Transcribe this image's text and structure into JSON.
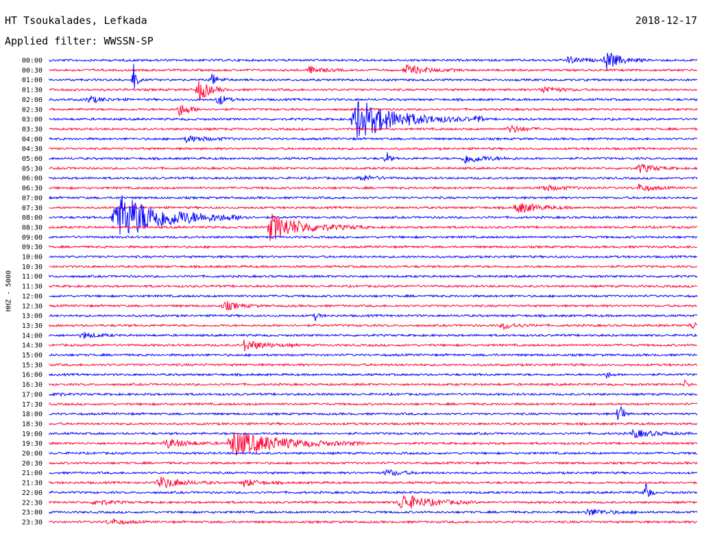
{
  "header": {
    "station": "HT Tsoukalades, Lefkada",
    "filter": "Applied filter: WWSSN-SP",
    "date": "2018-12-17"
  },
  "side_label": "HHZ - 5000",
  "colors": {
    "even": "#0000ff",
    "odd": "#ff0033"
  },
  "chart_data": {
    "type": "line",
    "title": "HT Tsoukalades, Lefkada",
    "ylabel": "HHZ - 5000",
    "row_labels": [
      "00:00",
      "00:30",
      "01:00",
      "01:30",
      "02:00",
      "02:30",
      "03:00",
      "03:30",
      "04:00",
      "04:30",
      "05:00",
      "05:30",
      "06:00",
      "06:30",
      "07:00",
      "07:30",
      "08:00",
      "08:30",
      "09:00",
      "09:30",
      "10:00",
      "10:30",
      "11:00",
      "11:30",
      "12:00",
      "12:30",
      "13:00",
      "13:30",
      "14:00",
      "14:30",
      "15:00",
      "15:30",
      "16:00",
      "16:30",
      "17:00",
      "17:30",
      "18:00",
      "18:30",
      "19:00",
      "19:30",
      "20:00",
      "20:30",
      "21:00",
      "21:30",
      "22:00",
      "22:30",
      "23:00",
      "23:30"
    ],
    "events": [
      {
        "row": 0,
        "x": 0.86,
        "amp": 14,
        "dur": 0.02
      },
      {
        "row": 0,
        "x": 0.8,
        "amp": 5,
        "dur": 0.02
      },
      {
        "row": 1,
        "x": 0.4,
        "amp": 5,
        "dur": 0.02
      },
      {
        "row": 1,
        "x": 0.55,
        "amp": 7,
        "dur": 0.03
      },
      {
        "row": 2,
        "x": 0.25,
        "amp": 9,
        "dur": 0.01
      },
      {
        "row": 2,
        "x": 0.13,
        "amp": 25,
        "dur": 0.004
      },
      {
        "row": 3,
        "x": 0.23,
        "amp": 18,
        "dur": 0.015
      },
      {
        "row": 3,
        "x": 0.76,
        "amp": 6,
        "dur": 0.02
      },
      {
        "row": 4,
        "x": 0.06,
        "amp": 5,
        "dur": 0.02
      },
      {
        "row": 4,
        "x": 0.26,
        "amp": 10,
        "dur": 0.01
      },
      {
        "row": 5,
        "x": 0.2,
        "amp": 10,
        "dur": 0.015
      },
      {
        "row": 6,
        "x": 0.47,
        "amp": 32,
        "dur": 0.06
      },
      {
        "row": 6,
        "x": 0.66,
        "amp": 12,
        "dur": 0.005
      },
      {
        "row": 7,
        "x": 0.71,
        "amp": 6,
        "dur": 0.02
      },
      {
        "row": 8,
        "x": 0.21,
        "amp": 5,
        "dur": 0.03
      },
      {
        "row": 10,
        "x": 0.52,
        "amp": 12,
        "dur": 0.004
      },
      {
        "row": 10,
        "x": 0.64,
        "amp": 7,
        "dur": 0.03
      },
      {
        "row": 11,
        "x": 0.91,
        "amp": 7,
        "dur": 0.02
      },
      {
        "row": 12,
        "x": 0.48,
        "amp": 5,
        "dur": 0.02
      },
      {
        "row": 13,
        "x": 0.76,
        "amp": 4,
        "dur": 0.03
      },
      {
        "row": 13,
        "x": 0.91,
        "amp": 5,
        "dur": 0.02
      },
      {
        "row": 16,
        "x": 0.1,
        "amp": 38,
        "dur": 0.07
      },
      {
        "row": 15,
        "x": 0.72,
        "amp": 9,
        "dur": 0.03
      },
      {
        "row": 17,
        "x": 0.34,
        "amp": 20,
        "dur": 0.05
      },
      {
        "row": 25,
        "x": 0.27,
        "amp": 7,
        "dur": 0.02
      },
      {
        "row": 26,
        "x": 0.41,
        "amp": 7,
        "dur": 0.005
      },
      {
        "row": 27,
        "x": 0.7,
        "amp": 5,
        "dur": 0.02
      },
      {
        "row": 27,
        "x": 0.99,
        "amp": 6,
        "dur": 0.01
      },
      {
        "row": 28,
        "x": 0.05,
        "amp": 5,
        "dur": 0.02
      },
      {
        "row": 29,
        "x": 0.3,
        "amp": 8,
        "dur": 0.03
      },
      {
        "row": 32,
        "x": 0.86,
        "amp": 5,
        "dur": 0.005
      },
      {
        "row": 33,
        "x": 0.98,
        "amp": 6,
        "dur": 0.005
      },
      {
        "row": 34,
        "x": 0.01,
        "amp": 8,
        "dur": 0.005
      },
      {
        "row": 36,
        "x": 0.88,
        "amp": 34,
        "dur": 0.004
      },
      {
        "row": 38,
        "x": 0.9,
        "amp": 6,
        "dur": 0.03
      },
      {
        "row": 39,
        "x": 0.28,
        "amp": 20,
        "dur": 0.07
      },
      {
        "row": 39,
        "x": 0.18,
        "amp": 7,
        "dur": 0.03
      },
      {
        "row": 43,
        "x": 0.17,
        "amp": 9,
        "dur": 0.03
      },
      {
        "row": 43,
        "x": 0.3,
        "amp": 6,
        "dur": 0.02
      },
      {
        "row": 42,
        "x": 0.52,
        "amp": 5,
        "dur": 0.02
      },
      {
        "row": 44,
        "x": 0.92,
        "amp": 20,
        "dur": 0.005
      },
      {
        "row": 45,
        "x": 0.54,
        "amp": 13,
        "dur": 0.04
      },
      {
        "row": 45,
        "x": 0.07,
        "amp": 5,
        "dur": 0.02
      },
      {
        "row": 46,
        "x": 0.83,
        "amp": 5,
        "dur": 0.03
      },
      {
        "row": 47,
        "x": 0.09,
        "amp": 5,
        "dur": 0.02
      }
    ]
  }
}
